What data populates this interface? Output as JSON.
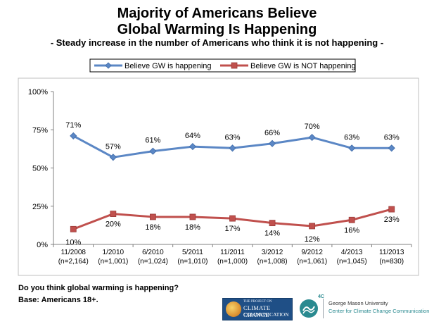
{
  "title_line1": "Majority of Americans Believe",
  "title_line2": "Global Warming Is Happening",
  "subtitle": "- Steady increase in the number of Americans who think it is not happening -",
  "chart_data": {
    "type": "line",
    "categories": [
      "11/2008",
      "1/2010",
      "6/2010",
      "5/2011",
      "11/2011",
      "3/2012",
      "9/2012",
      "4/2013",
      "11/2013"
    ],
    "category_sublabels": [
      "(n=2,164)",
      "(n=1,001)",
      "(n=1,024)",
      "(n=1,010)",
      "(n=1,000)",
      "(n=1,008)",
      "(n=1,061)",
      "(n=1,045)",
      "(n=830)"
    ],
    "series": [
      {
        "name": "Believe GW is happening",
        "values": [
          71,
          57,
          61,
          64,
          63,
          66,
          70,
          63,
          63
        ],
        "labels": [
          "71%",
          "57%",
          "61%",
          "64%",
          "63%",
          "66%",
          "70%",
          "63%",
          "63%"
        ],
        "color": "#5b87c5",
        "marker": "diamond"
      },
      {
        "name": "Believe GW is NOT happening",
        "values": [
          10,
          20,
          18,
          18,
          17,
          14,
          12,
          16,
          23
        ],
        "labels": [
          "10%",
          "20%",
          "18%",
          "18%",
          "17%",
          "14%",
          "12%",
          "16%",
          "23%"
        ],
        "color": "#c0504d",
        "marker": "square"
      }
    ],
    "y_ticks": [
      0,
      25,
      50,
      75,
      100
    ],
    "y_tick_labels": [
      "0%",
      "25%",
      "50%",
      "75%",
      "100%"
    ],
    "ylim": [
      0,
      100
    ],
    "legend_position": "top",
    "grid": false
  },
  "footnote_question": "Do you think global warming is happening?",
  "footnote_base": "Base: Americans 18+.",
  "logos": {
    "yale_small": "THE PROJECT ON",
    "yale_line1": "CLIMATE CHANGE",
    "yale_line2": "COMMUNICATION",
    "four_c": "4C",
    "gmu_line1": "George Mason University",
    "gmu_line2": "Center for Climate Change Communication"
  }
}
